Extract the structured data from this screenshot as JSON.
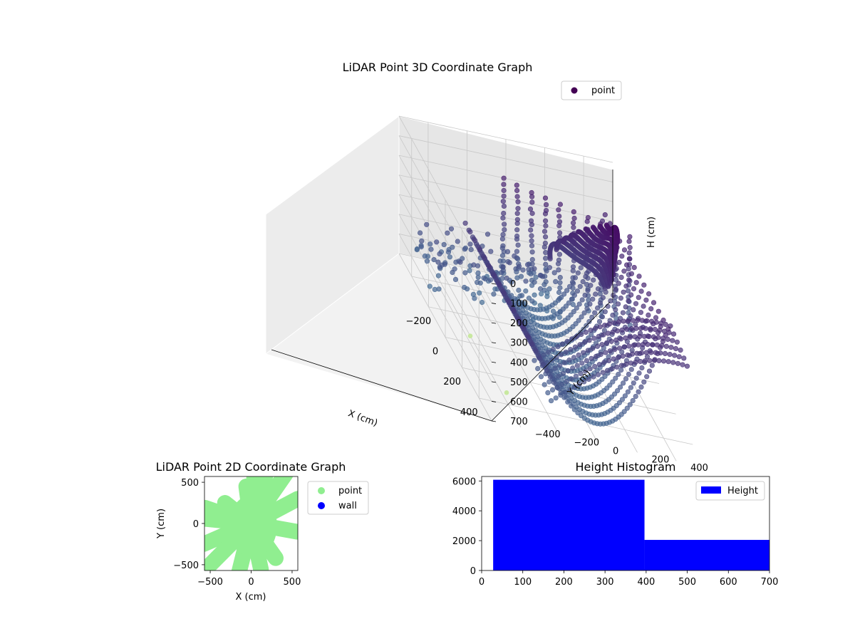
{
  "chart_data": [
    {
      "type": "scatter",
      "projection": "3d",
      "title": "LiDAR Point 3D Coordinate Graph",
      "xlabel": "X (cm)",
      "ylabel": "Y (cm)",
      "zlabel": "H (cm)",
      "x_ticks": [
        "−200",
        "0",
        "200",
        "400"
      ],
      "y_ticks": [
        "−400",
        "−200",
        "0",
        "200",
        "400"
      ],
      "z_ticks": [
        "0",
        "100",
        "200",
        "300",
        "400",
        "500",
        "600",
        "700"
      ],
      "xlim": [
        -550,
        550
      ],
      "ylim": [
        -550,
        550
      ],
      "zlim": [
        700,
        0
      ],
      "z_inverted": true,
      "legend": [
        {
          "name": "point",
          "color": "#440154"
        }
      ],
      "legend_position": "upper-right",
      "colormap": "viridis",
      "grid": true
    },
    {
      "type": "scatter",
      "title": "LiDAR Point 2D Coordinate Graph",
      "xlabel": "X (cm)",
      "ylabel": "Y (cm)",
      "x_ticks": [
        "−500",
        "0",
        "500"
      ],
      "y_ticks": [
        "−500",
        "0",
        "500"
      ],
      "xlim": [
        -570,
        570
      ],
      "ylim": [
        -570,
        570
      ],
      "series": [
        {
          "name": "point",
          "color": "#90ee90"
        },
        {
          "name": "wall",
          "color": "#0000ff"
        }
      ],
      "legend_position": "outside-right"
    },
    {
      "type": "bar",
      "subtype": "histogram",
      "title": "Height Histogram",
      "xlim": [
        0,
        700
      ],
      "ylim": [
        0,
        6300
      ],
      "x_ticks": [
        "0",
        "100",
        "200",
        "300",
        "400",
        "500",
        "600",
        "700"
      ],
      "y_ticks": [
        "0",
        "2000",
        "4000",
        "6000"
      ],
      "bins": [
        {
          "start": 28,
          "end": 396,
          "count": 6080
        },
        {
          "start": 396,
          "end": 700,
          "count": 2050
        }
      ],
      "series": [
        {
          "name": "Height",
          "color": "#0000ff"
        }
      ],
      "legend_position": "top-right"
    }
  ]
}
